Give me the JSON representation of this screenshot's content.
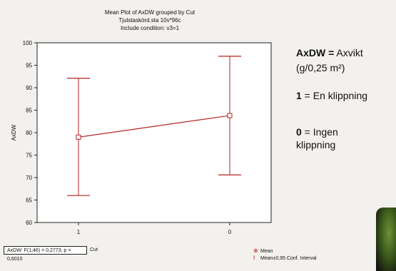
{
  "title_lines": [
    "Mean Plot of AxDW grouped by  Cut",
    "Tjulstaskörd.sta 10v*96c",
    "Include condition: v3=1"
  ],
  "stat_text": "AxDW:   F(1;46) = 0,2773; p = 0,6010",
  "group_var_label": "Cut",
  "legend": {
    "mean": "Mean",
    "ci": "Mean±0,95 Conf. Interval"
  },
  "annotations": {
    "axdw_bold": "AxDW =",
    "axdw_text": " Axvikt",
    "unit": "(g/0,25 m²)",
    "one_bold": "1",
    "one_text": " = En klippning",
    "zero_bold": "0",
    "zero_text": " = Ingen",
    "zero_text2": "klippning"
  },
  "colors": {
    "series": "#b22222",
    "frame": "#222222",
    "background": "#f3f1ed"
  },
  "chart_data": {
    "type": "line",
    "ylabel": "AxDW",
    "xlabel": "Cut",
    "categories": [
      "1",
      "0"
    ],
    "series": [
      {
        "name": "Mean",
        "values": [
          79.0,
          83.8
        ]
      }
    ],
    "ci_lower": [
      66.0,
      70.6
    ],
    "ci_upper": [
      92.1,
      97.0
    ],
    "ylim": [
      60,
      100
    ],
    "yticks": [
      60,
      65,
      70,
      75,
      80,
      85,
      90,
      95,
      100
    ],
    "grid": false,
    "legend_position": "bottom-right"
  }
}
